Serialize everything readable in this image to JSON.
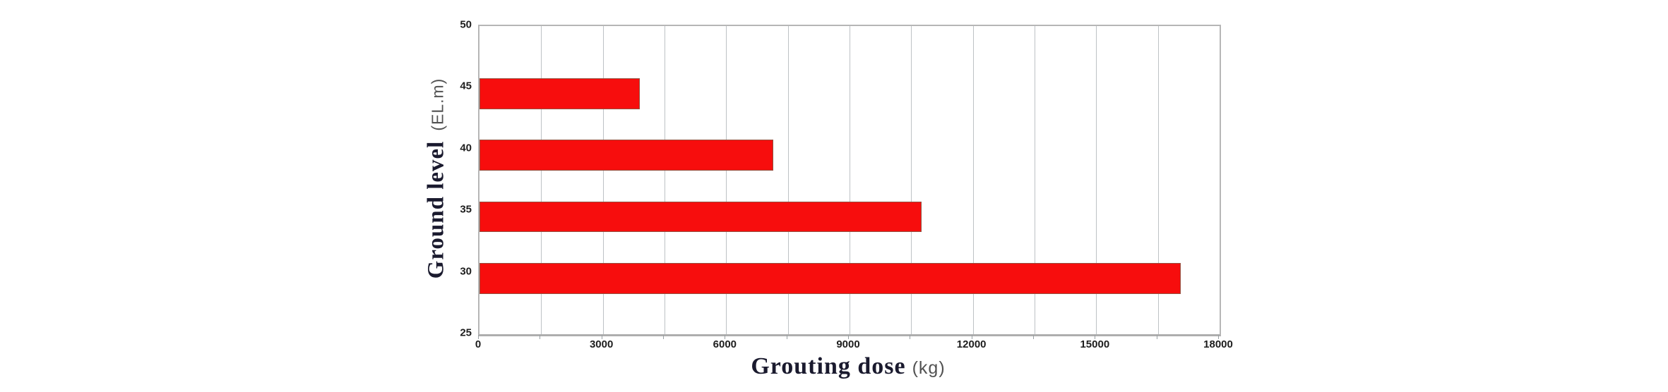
{
  "chart_data": {
    "type": "bar",
    "orientation": "horizontal",
    "title": "",
    "xlabel": "Grouting dose",
    "xlabel_unit": "(kg)",
    "ylabel": "Ground level",
    "ylabel_unit": "(EL.m)",
    "categories": [
      45,
      40,
      35,
      30
    ],
    "values": [
      3900,
      7150,
      10750,
      17050
    ],
    "xlim": [
      0,
      18000
    ],
    "ylim": [
      25,
      50
    ],
    "x_minor_step": 1500,
    "xticks": [
      {
        "v": 0,
        "label": "0"
      },
      {
        "v": 3000,
        "label": "3000"
      },
      {
        "v": 6000,
        "label": "6000"
      },
      {
        "v": 9000,
        "label": "9000"
      },
      {
        "v": 12000,
        "label": "12000"
      },
      {
        "v": 15000,
        "label": "15000"
      },
      {
        "v": 18000,
        "label": "18000"
      }
    ],
    "yticks": [
      {
        "v": 50,
        "label": "50"
      },
      {
        "v": 45,
        "label": "45"
      },
      {
        "v": 40,
        "label": "40"
      },
      {
        "v": 35,
        "label": "35"
      },
      {
        "v": 30,
        "label": "30"
      },
      {
        "v": 25,
        "label": "25"
      }
    ],
    "grid": "vertical-only",
    "legend": "none",
    "bar_thickness_units": 2.5,
    "bar_center_offset_units": -0.475,
    "bar_color": "#f70d0d",
    "bar_border_color": "#94503f",
    "grid_color": "#bdc2c5",
    "frame_color": "#b6b6b6",
    "tick_text_color": "#1d1d1d",
    "axis_title_color": "#1a1a2e",
    "unit_text_color": "#525252",
    "background_color": "#ffffff"
  }
}
